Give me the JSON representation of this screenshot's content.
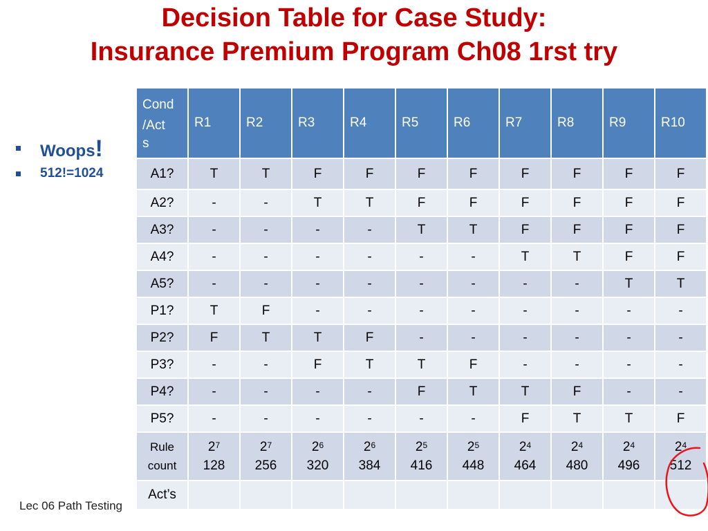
{
  "slide": {
    "title_line1": "Decision Table for Case Study:",
    "title_line2": "Insurance Premium Program Ch08 1rst try",
    "bullets": [
      {
        "text": "Woops",
        "suffix": "!"
      },
      {
        "text": "512!=1024"
      }
    ],
    "footer": "Lec 06 Path Testing"
  },
  "table": {
    "corner_label": [
      "Cond",
      "/Act",
      "s"
    ],
    "rules": [
      "R1",
      "R2",
      "R3",
      "R4",
      "R5",
      "R6",
      "R7",
      "R8",
      "R9",
      "R10"
    ],
    "rows": [
      {
        "label": "A1?",
        "cells": [
          "T",
          "T",
          "F",
          "F",
          "F",
          "F",
          "F",
          "F",
          "F",
          "F"
        ]
      },
      {
        "label": "A2?",
        "cells": [
          "-",
          "-",
          "T",
          "T",
          "F",
          "F",
          "F",
          "F",
          "F",
          "F"
        ]
      },
      {
        "label": "A3?",
        "cells": [
          "-",
          "-",
          "-",
          "-",
          "T",
          "T",
          "F",
          "F",
          "F",
          "F"
        ]
      },
      {
        "label": "A4?",
        "cells": [
          "-",
          "-",
          "-",
          "-",
          "-",
          "-",
          "T",
          "T",
          "F",
          "F"
        ]
      },
      {
        "label": "A5?",
        "cells": [
          "-",
          "-",
          "-",
          "-",
          "-",
          "-",
          "-",
          "-",
          "T",
          "T"
        ]
      },
      {
        "label": "P1?",
        "cells": [
          "T",
          "F",
          "-",
          "-",
          "-",
          "-",
          "-",
          "-",
          "-",
          "-"
        ]
      },
      {
        "label": "P2?",
        "cells": [
          "F",
          "T",
          "T",
          "F",
          "-",
          "-",
          "-",
          "-",
          "-",
          "-"
        ]
      },
      {
        "label": "P3?",
        "cells": [
          "-",
          "-",
          "F",
          "T",
          "T",
          "F",
          "-",
          "-",
          "-",
          "-"
        ]
      },
      {
        "label": "P4?",
        "cells": [
          "-",
          "-",
          "-",
          "-",
          "F",
          "T",
          "T",
          "F",
          "-",
          "-"
        ]
      },
      {
        "label": "P5?",
        "cells": [
          "-",
          "-",
          "-",
          "-",
          "-",
          "-",
          "F",
          "T",
          "T",
          "F"
        ]
      }
    ],
    "rule_count": {
      "label": [
        "Rule",
        "count"
      ],
      "cells": [
        {
          "base": "2",
          "exp": "7",
          "total": "128"
        },
        {
          "base": "2",
          "exp": "7",
          "total": "256"
        },
        {
          "base": "2",
          "exp": "6",
          "total": "320"
        },
        {
          "base": "2",
          "exp": "6",
          "total": "384"
        },
        {
          "base": "2",
          "exp": "5",
          "total": "416"
        },
        {
          "base": "2",
          "exp": "5",
          "total": "448"
        },
        {
          "base": "2",
          "exp": "4",
          "total": "464"
        },
        {
          "base": "2",
          "exp": "4",
          "total": "480"
        },
        {
          "base": "2",
          "exp": "4",
          "total": "496"
        },
        {
          "base": "2",
          "exp": "4",
          "total": "512"
        }
      ]
    },
    "actions_label": "Act’s"
  },
  "colors": {
    "title": "#c00000",
    "bullet_text": "#1f4e9a",
    "header_fill": "#4f81bd",
    "row_dark": "#d0d8e8",
    "row_light": "#e9edf4",
    "annotation": "#e8161b"
  }
}
